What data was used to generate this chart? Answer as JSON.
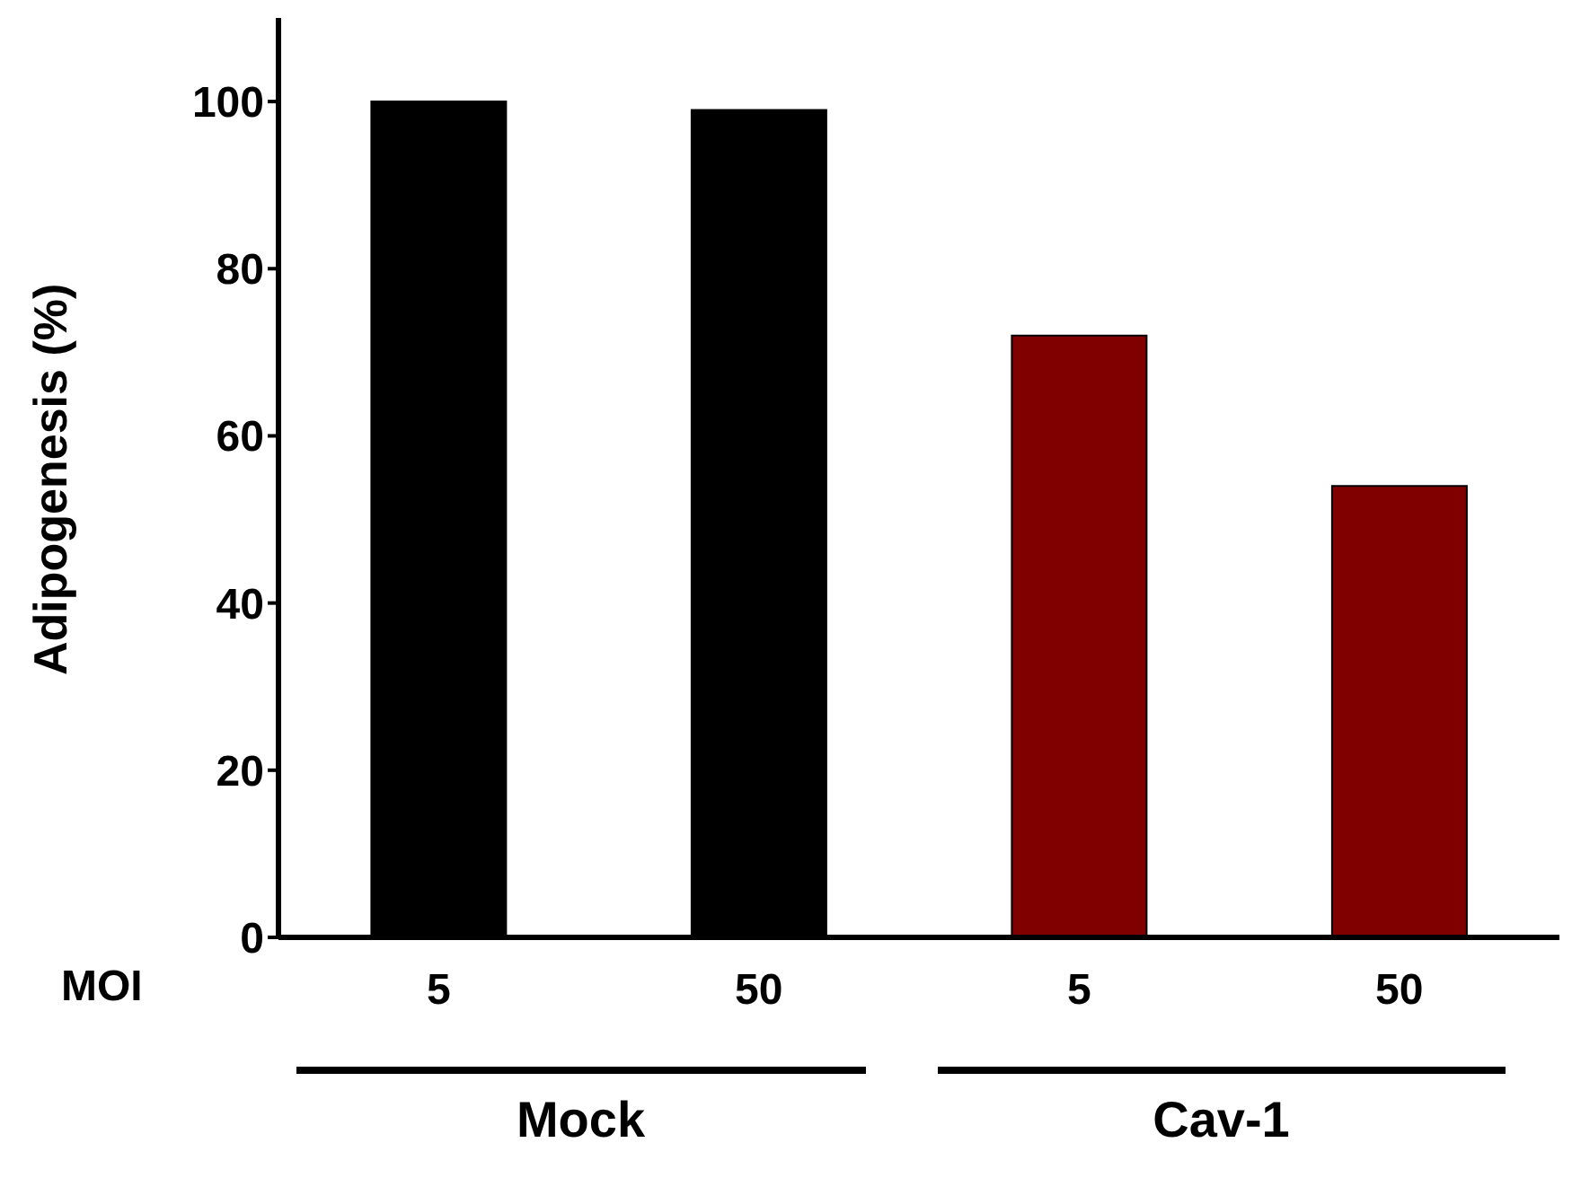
{
  "chart_data": {
    "type": "bar",
    "ylabel": "Adipogenesis (%)",
    "categories": [
      "5",
      "50",
      "5",
      "50"
    ],
    "values": [
      100,
      99,
      72,
      54
    ],
    "colors": [
      "#000000",
      "#000000",
      "#800000",
      "#800000"
    ],
    "ylim": [
      0,
      110
    ],
    "yticks": [
      0,
      20,
      40,
      60,
      80,
      100
    ],
    "annotations": [
      "MOI",
      "Mock",
      "Cav-1"
    ]
  }
}
